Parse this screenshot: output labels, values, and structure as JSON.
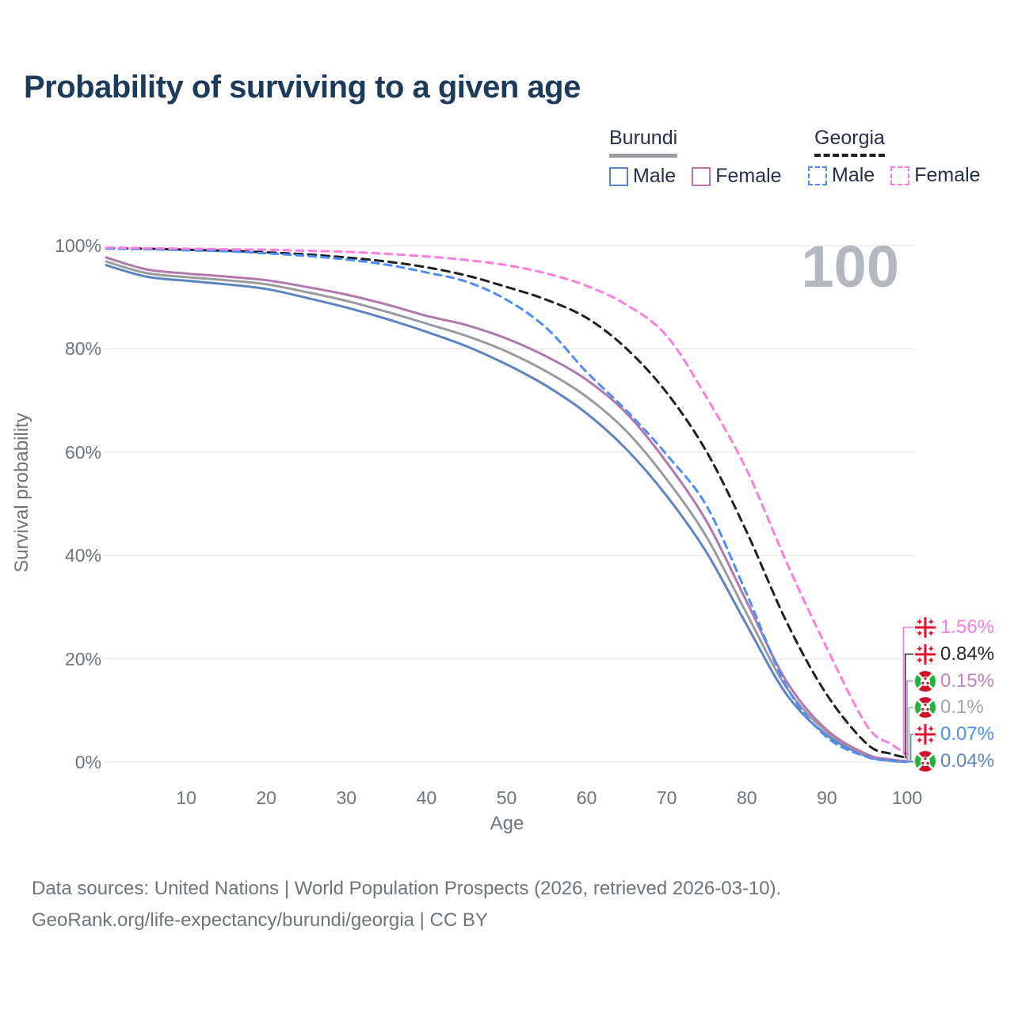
{
  "header": {
    "title": "Probability of surviving to a given age"
  },
  "legend": {
    "groups": [
      {
        "label": "Burundi",
        "line_style": "solid",
        "underline_color": "#9a9ba0",
        "items": [
          {
            "label": "Male",
            "series": "burundi_male"
          },
          {
            "label": "Female",
            "series": "burundi_female"
          }
        ]
      },
      {
        "label": "Georgia",
        "line_style": "dashed",
        "underline_color": "#1f2023",
        "items": [
          {
            "label": "Male",
            "series": "georgia_male"
          },
          {
            "label": "Female",
            "series": "georgia_female"
          }
        ]
      }
    ]
  },
  "watermark": {
    "text": "100"
  },
  "axes": {
    "x": {
      "title": "Age",
      "ticks": [
        {
          "label": "10",
          "value": 10
        },
        {
          "label": "20",
          "value": 20
        },
        {
          "label": "30",
          "value": 30
        },
        {
          "label": "40",
          "value": 40
        },
        {
          "label": "50",
          "value": 50
        },
        {
          "label": "60",
          "value": 60
        },
        {
          "label": "70",
          "value": 70
        },
        {
          "label": "80",
          "value": 80
        },
        {
          "label": "90",
          "value": 90
        },
        {
          "label": "100",
          "value": 100
        }
      ]
    },
    "y": {
      "title": "Survival probability",
      "ticks": [
        {
          "label": "0%",
          "value": 0
        },
        {
          "label": "20%",
          "value": 20
        },
        {
          "label": "40%",
          "value": 40
        },
        {
          "label": "60%",
          "value": 60
        },
        {
          "label": "80%",
          "value": 80
        },
        {
          "label": "100%",
          "value": 100
        }
      ]
    }
  },
  "chart_data": {
    "type": "line",
    "title": "Probability of surviving to a given age",
    "xlabel": "Age",
    "ylabel": "Survival probability",
    "x_range": [
      0,
      100
    ],
    "y_range_percent": [
      0,
      100
    ],
    "grid": "horizontal-only",
    "x_ages": [
      0,
      5,
      10,
      15,
      20,
      25,
      30,
      35,
      40,
      45,
      50,
      55,
      60,
      65,
      70,
      75,
      80,
      85,
      90,
      95,
      98,
      100
    ],
    "series": [
      {
        "key": "burundi_male",
        "name": "Burundi Male",
        "country": "Burundi",
        "sex": "Male",
        "color": "#5b84c4",
        "dash": null,
        "values": [
          96.2,
          94.0,
          93.2,
          92.5,
          91.6,
          89.9,
          88.0,
          85.8,
          83.3,
          80.5,
          77.0,
          72.8,
          67.5,
          60.5,
          51.5,
          40.5,
          26.5,
          13.0,
          5.2,
          1.1,
          0.25,
          0.04
        ]
      },
      {
        "key": "burundi_mean",
        "name": "Burundi",
        "country": "Burundi",
        "sex": "Both",
        "color": "#9a9ba0",
        "dash": null,
        "values": [
          96.9,
          94.7,
          93.9,
          93.3,
          92.5,
          91.0,
          89.3,
          87.2,
          84.9,
          82.5,
          79.5,
          75.6,
          70.7,
          64.0,
          54.7,
          43.5,
          28.7,
          14.3,
          5.8,
          1.3,
          0.35,
          0.1
        ]
      },
      {
        "key": "burundi_female",
        "name": "Burundi Female",
        "country": "Burundi",
        "sex": "Female",
        "color": "#b277ae",
        "dash": null,
        "values": [
          97.7,
          95.4,
          94.6,
          94.0,
          93.3,
          92.0,
          90.5,
          88.6,
          86.4,
          84.6,
          82.0,
          78.5,
          74.0,
          67.5,
          58.0,
          46.5,
          31.0,
          15.5,
          6.2,
          1.5,
          0.5,
          0.15
        ]
      },
      {
        "key": "georgia_mean",
        "name": "Georgia",
        "country": "Georgia",
        "sex": "Both",
        "color": "#1f2023",
        "dash": "10 7",
        "values": [
          99.5,
          99.4,
          99.2,
          99.0,
          98.7,
          98.3,
          97.7,
          96.9,
          95.8,
          94.2,
          92.0,
          89.5,
          86.0,
          80.0,
          71.5,
          60.0,
          44.5,
          27.0,
          13.0,
          3.5,
          1.6,
          0.84
        ]
      },
      {
        "key": "georgia_male",
        "name": "Georgia Male",
        "country": "Georgia",
        "sex": "Male",
        "color": "#4b8ef7",
        "dash": "9 7",
        "values": [
          99.4,
          99.3,
          99.1,
          98.9,
          98.5,
          98.0,
          97.3,
          96.3,
          94.8,
          93.0,
          89.5,
          84.0,
          75.5,
          68.0,
          59.5,
          49.5,
          32.5,
          14.5,
          4.8,
          1.0,
          0.3,
          0.07
        ]
      },
      {
        "key": "georgia_female",
        "name": "Georgia Female",
        "country": "Georgia",
        "sex": "Female",
        "color": "#ff7ce0",
        "dash": "9 7",
        "values": [
          99.6,
          99.5,
          99.4,
          99.3,
          99.2,
          99.0,
          98.8,
          98.4,
          97.9,
          97.2,
          96.2,
          94.6,
          92.2,
          88.5,
          82.5,
          70.5,
          56.5,
          38.5,
          22.0,
          7.0,
          3.5,
          1.56
        ]
      }
    ],
    "end_labels": [
      {
        "series": "georgia_female",
        "flag": "georgia",
        "label": "1.56%",
        "value": 1.56,
        "color": "#ff7ce0"
      },
      {
        "series": "georgia_mean",
        "flag": "georgia",
        "label": "0.84%",
        "value": 0.84,
        "color": "#26282c"
      },
      {
        "series": "burundi_female",
        "flag": "burundi",
        "label": "0.15%",
        "value": 0.15,
        "color": "#c183ba"
      },
      {
        "series": "burundi_mean",
        "flag": "burundi",
        "label": "0.1%",
        "value": 0.1,
        "color": "#a2a3a6"
      },
      {
        "series": "georgia_male",
        "flag": "georgia",
        "label": "0.07%",
        "value": 0.07,
        "color": "#4b8ef7"
      },
      {
        "series": "burundi_male",
        "flag": "burundi",
        "label": "0.04%",
        "value": 0.04,
        "color": "#5b84c4"
      }
    ],
    "flag_colors": {
      "georgia_red": "#e8112d",
      "burundi_red": "#ce1126",
      "burundi_green": "#1eb53a"
    },
    "gridline_color": "#e8e8ea"
  },
  "footer": {
    "line1": "Data sources: United Nations | World Population Prospects (2026, retrieved 2026-03-10).",
    "line2": "GeoRank.org/life-expectancy/burundi/georgia | CC BY"
  }
}
